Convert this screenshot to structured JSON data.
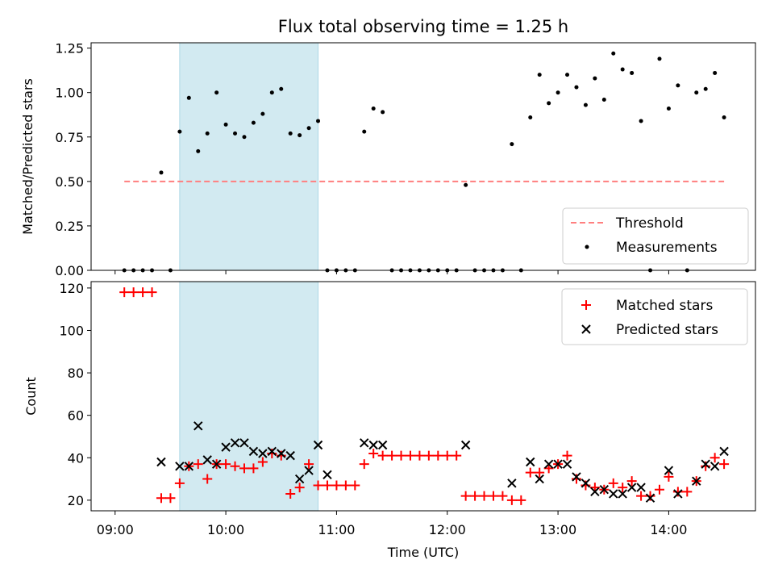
{
  "title": "Flux total observing time = 1.25 h",
  "colors": {
    "threshold": "#ff7f7f",
    "measurement": "#000000",
    "matched": "#ff0000",
    "predicted": "#000000",
    "shade": "#add8e6"
  },
  "chart_data": [
    {
      "type": "scatter",
      "ylabel": "Matched/Predicted stars",
      "ylim": [
        0,
        1.28
      ],
      "xlim": [
        "08:47",
        "14:47"
      ],
      "y_ticks": [
        "0.00",
        "0.25",
        "0.50",
        "0.75",
        "1.00",
        "1.25"
      ],
      "shaded_interval": [
        "09:35",
        "10:50"
      ],
      "legend": {
        "placement": "lower right",
        "entries": [
          "Threshold",
          "Measurements"
        ]
      },
      "threshold": {
        "name": "Threshold",
        "value": 0.5,
        "x_range": [
          "09:05",
          "14:30"
        ]
      },
      "series": [
        {
          "name": "Measurements",
          "points": [
            [
              "09:05",
              0
            ],
            [
              "09:10",
              0
            ],
            [
              "09:15",
              0
            ],
            [
              "09:20",
              0
            ],
            [
              "09:25",
              0.55
            ],
            [
              "09:30",
              0
            ],
            [
              "09:35",
              0.78
            ],
            [
              "09:40",
              0.97
            ],
            [
              "09:45",
              0.67
            ],
            [
              "09:50",
              0.77
            ],
            [
              "09:55",
              1.0
            ],
            [
              "10:00",
              0.82
            ],
            [
              "10:05",
              0.77
            ],
            [
              "10:10",
              0.75
            ],
            [
              "10:15",
              0.83
            ],
            [
              "10:20",
              0.88
            ],
            [
              "10:25",
              1.0
            ],
            [
              "10:30",
              1.02
            ],
            [
              "10:35",
              0.77
            ],
            [
              "10:40",
              0.76
            ],
            [
              "10:45",
              0.8
            ],
            [
              "10:50",
              0.84
            ],
            [
              "10:55",
              0
            ],
            [
              "11:00",
              0
            ],
            [
              "11:05",
              0
            ],
            [
              "11:10",
              0
            ],
            [
              "11:15",
              0.78
            ],
            [
              "11:20",
              0.91
            ],
            [
              "11:25",
              0.89
            ],
            [
              "11:30",
              0
            ],
            [
              "11:35",
              0
            ],
            [
              "11:40",
              0
            ],
            [
              "11:45",
              0
            ],
            [
              "11:50",
              0
            ],
            [
              "11:55",
              0
            ],
            [
              "12:00",
              0
            ],
            [
              "12:05",
              0
            ],
            [
              "12:10",
              0.48
            ],
            [
              "12:15",
              0
            ],
            [
              "12:20",
              0
            ],
            [
              "12:25",
              0
            ],
            [
              "12:30",
              0
            ],
            [
              "12:35",
              0.71
            ],
            [
              "12:40",
              0
            ],
            [
              "12:45",
              0.86
            ],
            [
              "12:50",
              1.1
            ],
            [
              "12:55",
              0.94
            ],
            [
              "13:00",
              1.0
            ],
            [
              "13:05",
              1.1
            ],
            [
              "13:10",
              1.03
            ],
            [
              "13:15",
              0.93
            ],
            [
              "13:20",
              1.08
            ],
            [
              "13:25",
              0.96
            ],
            [
              "13:30",
              1.22
            ],
            [
              "13:35",
              1.13
            ],
            [
              "13:40",
              1.11
            ],
            [
              "13:45",
              0.84
            ],
            [
              "13:50",
              0
            ],
            [
              "13:55",
              1.19
            ],
            [
              "14:00",
              0.91
            ],
            [
              "14:05",
              1.04
            ],
            [
              "14:10",
              0
            ],
            [
              "14:15",
              1.0
            ],
            [
              "14:20",
              1.02
            ],
            [
              "14:25",
              1.11
            ],
            [
              "14:30",
              0.86
            ]
          ]
        }
      ]
    },
    {
      "type": "scatter",
      "xlabel": "Time (UTC)",
      "ylabel": "Count",
      "ylim": [
        15,
        123
      ],
      "xlim": [
        "08:47",
        "14:47"
      ],
      "x_ticks": [
        "09:00",
        "10:00",
        "11:00",
        "12:00",
        "13:00",
        "14:00"
      ],
      "y_ticks": [
        "20",
        "40",
        "60",
        "80",
        "100",
        "120"
      ],
      "shaded_interval": [
        "09:35",
        "10:50"
      ],
      "legend": {
        "placement": "upper right",
        "entries": [
          "Matched stars",
          "Predicted stars"
        ]
      },
      "series": [
        {
          "name": "Matched stars",
          "marker": "+",
          "points": [
            [
              "09:05",
              118
            ],
            [
              "09:10",
              118
            ],
            [
              "09:15",
              118
            ],
            [
              "09:20",
              118
            ],
            [
              "09:25",
              21
            ],
            [
              "09:30",
              21
            ],
            [
              "09:35",
              28
            ],
            [
              "09:40",
              36
            ],
            [
              "09:45",
              37
            ],
            [
              "09:50",
              30
            ],
            [
              "09:55",
              37
            ],
            [
              "10:00",
              37
            ],
            [
              "10:05",
              36
            ],
            [
              "10:10",
              35
            ],
            [
              "10:15",
              35
            ],
            [
              "10:20",
              38
            ],
            [
              "10:25",
              42
            ],
            [
              "10:30",
              41
            ],
            [
              "10:35",
              23
            ],
            [
              "10:40",
              26
            ],
            [
              "10:45",
              37
            ],
            [
              "10:50",
              27
            ],
            [
              "10:55",
              27
            ],
            [
              "11:00",
              27
            ],
            [
              "11:05",
              27
            ],
            [
              "11:10",
              27
            ],
            [
              "11:15",
              37
            ],
            [
              "11:20",
              42
            ],
            [
              "11:25",
              41
            ],
            [
              "11:30",
              41
            ],
            [
              "11:35",
              41
            ],
            [
              "11:40",
              41
            ],
            [
              "11:45",
              41
            ],
            [
              "11:50",
              41
            ],
            [
              "11:55",
              41
            ],
            [
              "12:00",
              41
            ],
            [
              "12:05",
              41
            ],
            [
              "12:10",
              22
            ],
            [
              "12:15",
              22
            ],
            [
              "12:20",
              22
            ],
            [
              "12:25",
              22
            ],
            [
              "12:30",
              22
            ],
            [
              "12:35",
              20
            ],
            [
              "12:40",
              20
            ],
            [
              "12:45",
              33
            ],
            [
              "12:50",
              33
            ],
            [
              "12:55",
              35
            ],
            [
              "13:00",
              37
            ],
            [
              "13:05",
              41
            ],
            [
              "13:10",
              30
            ],
            [
              "13:15",
              27
            ],
            [
              "13:20",
              26
            ],
            [
              "13:25",
              25
            ],
            [
              "13:30",
              28
            ],
            [
              "13:35",
              26
            ],
            [
              "13:40",
              29
            ],
            [
              "13:45",
              22
            ],
            [
              "13:50",
              22
            ],
            [
              "13:55",
              25
            ],
            [
              "14:00",
              31
            ],
            [
              "14:05",
              24
            ],
            [
              "14:10",
              24
            ],
            [
              "14:15",
              29
            ],
            [
              "14:20",
              36
            ],
            [
              "14:25",
              40
            ],
            [
              "14:30",
              37
            ]
          ]
        },
        {
          "name": "Predicted stars",
          "marker": "x",
          "points": [
            [
              "09:25",
              38
            ],
            [
              "09:35",
              36
            ],
            [
              "09:40",
              36
            ],
            [
              "09:45",
              55
            ],
            [
              "09:50",
              39
            ],
            [
              "09:55",
              37
            ],
            [
              "10:00",
              45
            ],
            [
              "10:05",
              47
            ],
            [
              "10:10",
              47
            ],
            [
              "10:15",
              43
            ],
            [
              "10:20",
              42
            ],
            [
              "10:25",
              43
            ],
            [
              "10:30",
              42
            ],
            [
              "10:35",
              41
            ],
            [
              "10:40",
              30
            ],
            [
              "10:45",
              34
            ],
            [
              "10:50",
              46
            ],
            [
              "10:55",
              32
            ],
            [
              "11:15",
              47
            ],
            [
              "11:20",
              46
            ],
            [
              "11:25",
              46
            ],
            [
              "12:10",
              46
            ],
            [
              "12:35",
              28
            ],
            [
              "12:45",
              38
            ],
            [
              "12:50",
              30
            ],
            [
              "12:55",
              37
            ],
            [
              "13:00",
              37
            ],
            [
              "13:05",
              37
            ],
            [
              "13:10",
              31
            ],
            [
              "13:15",
              28
            ],
            [
              "13:20",
              24
            ],
            [
              "13:25",
              25
            ],
            [
              "13:30",
              23
            ],
            [
              "13:35",
              23
            ],
            [
              "13:40",
              26
            ],
            [
              "13:45",
              26
            ],
            [
              "13:50",
              21
            ],
            [
              "14:00",
              34
            ],
            [
              "14:05",
              23
            ],
            [
              "14:15",
              29
            ],
            [
              "14:20",
              37
            ],
            [
              "14:25",
              36
            ],
            [
              "14:30",
              43
            ]
          ]
        }
      ]
    }
  ]
}
